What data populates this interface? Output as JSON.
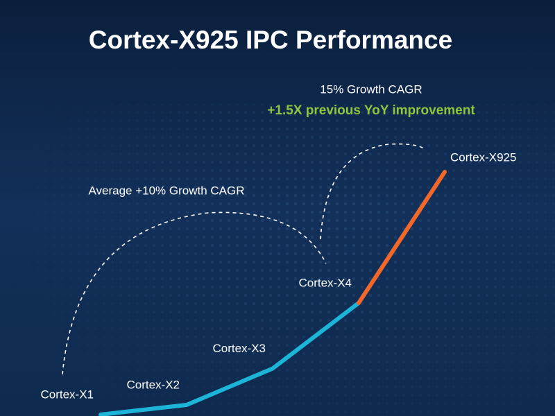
{
  "chart_data": {
    "type": "line",
    "title": "Cortex-X925 IPC Performance",
    "annotations": [
      "15% Growth CAGR",
      "+1.5X previous YoY improvement",
      "Average +10% Growth CAGR"
    ],
    "categories": [
      "Cortex-X1",
      "Cortex-X2",
      "Cortex-X3",
      "Cortex-X4",
      "Cortex-X925"
    ],
    "values": [
      0,
      0.4,
      1.9,
      4.6,
      10
    ],
    "ylim": [
      0,
      10
    ],
    "color": "#1cb5d8",
    "highlight_color": "#f2682a"
  }
}
